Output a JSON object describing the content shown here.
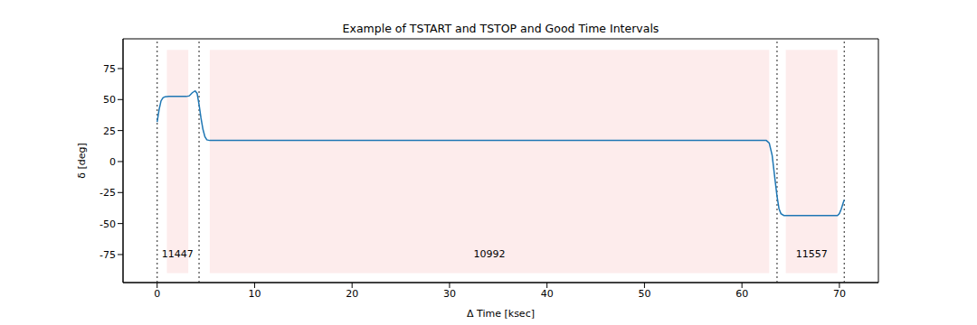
{
  "chart_data": {
    "type": "line",
    "title": "Example of TSTART and TSTOP and Good Time Intervals",
    "x_label": "Δ Time [ksec]",
    "y_label": "δ [deg]",
    "x": [
      0,
      0.2,
      0.4,
      0.6,
      0.8,
      1.2,
      3.0,
      3.3,
      3.6,
      3.9,
      4.1,
      4.3,
      4.5,
      4.7,
      4.9,
      5.1,
      5.4,
      62.5,
      62.8,
      63.1,
      63.4,
      63.6,
      63.8,
      64.0,
      64.3,
      69.8,
      70.0,
      70.2,
      70.4,
      70.5
    ],
    "values": [
      32,
      42,
      49,
      51.5,
      52.3,
      52.5,
      52.5,
      53,
      55.5,
      57,
      55,
      46,
      35,
      26,
      20,
      17.5,
      17,
      17,
      15,
      5,
      -15,
      -28,
      -38,
      -42,
      -43.5,
      -43.5,
      -42,
      -38,
      -33,
      -31
    ],
    "color": "#1f77b4",
    "xlim": [
      -3.5,
      74
    ],
    "xticks": [
      0,
      10,
      20,
      30,
      40,
      50,
      60,
      70
    ],
    "ylim": [
      -97.6,
      99
    ],
    "yticks": [
      -75,
      -50,
      -25,
      0,
      25,
      50,
      75
    ],
    "intervals": [
      {
        "start": 1.0,
        "stop": 3.2,
        "ymin": -90,
        "ymax": 90,
        "label": "11447",
        "color": "#fdecec"
      },
      {
        "start": 5.4,
        "stop": 62.8,
        "ymin": -90,
        "ymax": 90,
        "label": "10992",
        "color": "#fdecec"
      },
      {
        "start": 64.5,
        "stop": 69.8,
        "ymin": -90,
        "ymax": 90,
        "label": "11557",
        "color": "#fdecec"
      }
    ],
    "boundaries": [
      0,
      4.3,
      63.6,
      70.5
    ],
    "boundary_color": "#555555",
    "boundary_line_style": "dotted"
  }
}
